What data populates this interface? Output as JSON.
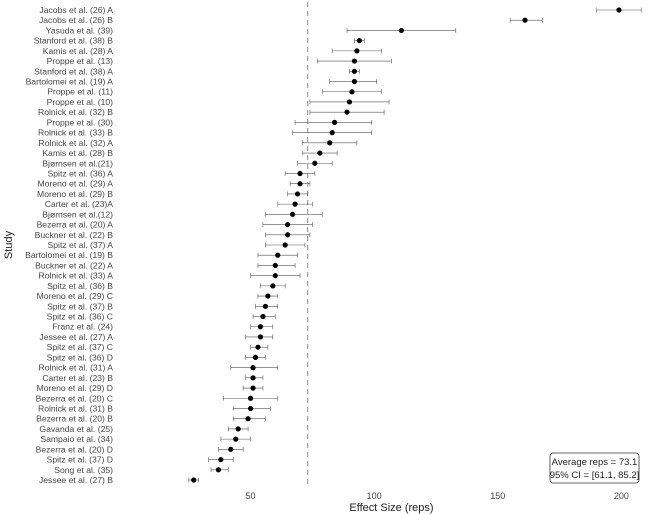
{
  "chart_data": {
    "type": "forest",
    "xlabel": "Effect Size (reps)",
    "ylabel": "Study",
    "xlim": [
      -2,
      216
    ],
    "xticks": [
      50,
      100,
      150,
      200
    ],
    "reference_line": 73.1,
    "summary": {
      "line1": "Average reps = 73.1",
      "line2": "95% CI = [61.1, 85.2]"
    },
    "studies": [
      {
        "label": "Jacobs et al. (26) A",
        "value": 199,
        "low": 190,
        "high": 208
      },
      {
        "label": "Jacobs et al. (26) B",
        "value": 161,
        "low": 155,
        "high": 168
      },
      {
        "label": "Yasuda et al. (39)",
        "value": 111,
        "low": 89,
        "high": 133
      },
      {
        "label": "Stanford et al. (38) B",
        "value": 94,
        "low": 92,
        "high": 96
      },
      {
        "label": "Kamis et al. (28) A",
        "value": 93,
        "low": 83,
        "high": 103
      },
      {
        "label": "Proppe et al.  (13)",
        "value": 92,
        "low": 77,
        "high": 107
      },
      {
        "label": "Stanford et al. (38) A",
        "value": 92,
        "low": 90,
        "high": 94
      },
      {
        "label": "Bartolomei et al. (19) A",
        "value": 92,
        "low": 82,
        "high": 101
      },
      {
        "label": "Proppe et al.  (11)",
        "value": 91,
        "low": 79,
        "high": 103
      },
      {
        "label": "Proppe et al.  (10)",
        "value": 90,
        "low": 74,
        "high": 106
      },
      {
        "label": "Rolnick et al. (32) B",
        "value": 89,
        "low": 74,
        "high": 104
      },
      {
        "label": "Proppe et al.  (30)",
        "value": 84,
        "low": 68,
        "high": 99
      },
      {
        "label": "Rolnick et al. (33) B",
        "value": 83,
        "low": 67,
        "high": 99
      },
      {
        "label": "Rolnick et al. (32) A",
        "value": 82,
        "low": 71,
        "high": 93
      },
      {
        "label": "Kamis et al. (28) B",
        "value": 78,
        "low": 71,
        "high": 85
      },
      {
        "label": "Bjørnsen et al.(21)",
        "value": 76,
        "low": 69,
        "high": 83
      },
      {
        "label": "Spitz et al. (36) A",
        "value": 70,
        "low": 64,
        "high": 76
      },
      {
        "label": "Moreno et al. (29) A",
        "value": 70,
        "low": 66,
        "high": 74
      },
      {
        "label": "Moreno et al. (29) B",
        "value": 69,
        "low": 65,
        "high": 73
      },
      {
        "label": "Carter et al. (23)A",
        "value": 68,
        "low": 61,
        "high": 75
      },
      {
        "label": "Bjørnsen et al.(12)",
        "value": 67,
        "low": 56,
        "high": 79
      },
      {
        "label": "Bezerra et al. (20) A",
        "value": 65,
        "low": 55,
        "high": 75
      },
      {
        "label": "Buckner et al. (22) B",
        "value": 65,
        "low": 56,
        "high": 74
      },
      {
        "label": "Spitz et al. (37) A",
        "value": 64,
        "low": 56,
        "high": 72
      },
      {
        "label": "Bartolomei et al. (19) B",
        "value": 61,
        "low": 53,
        "high": 69
      },
      {
        "label": "Buckner et al. (22) A",
        "value": 60,
        "low": 53,
        "high": 68
      },
      {
        "label": "Rolnick et al. (33) A",
        "value": 60,
        "low": 50,
        "high": 70
      },
      {
        "label": "Spitz et al. (36) B",
        "value": 59,
        "low": 54,
        "high": 64
      },
      {
        "label": "Moreno et al. (29) C",
        "value": 57,
        "low": 53,
        "high": 61
      },
      {
        "label": "Spitz et al. (37) B",
        "value": 56,
        "low": 52,
        "high": 61
      },
      {
        "label": "Spitz et al. (36) C",
        "value": 55,
        "low": 51,
        "high": 60
      },
      {
        "label": "Franz et al. (24)",
        "value": 54,
        "low": 50,
        "high": 59
      },
      {
        "label": "Jessee et al. (27) A",
        "value": 54,
        "low": 48,
        "high": 59
      },
      {
        "label": "Spitz et al. (37) C",
        "value": 53,
        "low": 50,
        "high": 57
      },
      {
        "label": "Spitz et al. (36) D",
        "value": 52,
        "low": 48,
        "high": 56
      },
      {
        "label": "Rolnick et al. (31) A",
        "value": 51,
        "low": 42,
        "high": 61
      },
      {
        "label": "Carter et al. (23) B",
        "value": 51,
        "low": 48,
        "high": 55
      },
      {
        "label": "Moreno et al. (29) D",
        "value": 51,
        "low": 47,
        "high": 55
      },
      {
        "label": "Bezerra et al. (20) C",
        "value": 50,
        "low": 39,
        "high": 61
      },
      {
        "label": "Rolnick et al. (31) B",
        "value": 50,
        "low": 43,
        "high": 58
      },
      {
        "label": "Bezerra et al. (20) B",
        "value": 49,
        "low": 43,
        "high": 56
      },
      {
        "label": "Gavanda et al. (25)",
        "value": 45,
        "low": 41,
        "high": 49
      },
      {
        "label": "Sampaio et al. (34)",
        "value": 44,
        "low": 38,
        "high": 50
      },
      {
        "label": "Bezerra et al. (20) D",
        "value": 42,
        "low": 37,
        "high": 47
      },
      {
        "label": "Spitz et al. (37) D",
        "value": 38,
        "low": 33,
        "high": 43
      },
      {
        "label": "Song et al. (35)",
        "value": 37,
        "low": 34,
        "high": 41
      },
      {
        "label": "Jessee et al. (27) B",
        "value": 27,
        "low": 25,
        "high": 29
      }
    ]
  }
}
